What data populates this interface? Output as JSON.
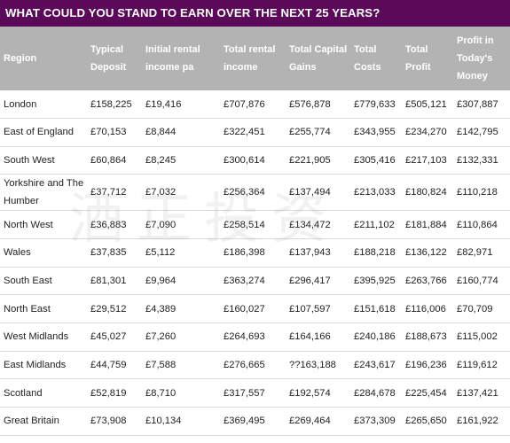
{
  "title": "WHAT COULD YOU STAND TO EARN OVER THE NEXT 25 YEARS?",
  "columns": [
    "Region",
    "Typical Deposit",
    "Initial rental income pa",
    "Total rental income",
    "Total Capital Gains",
    "Total Costs",
    "Total Profit",
    "Profit in Today's Money"
  ],
  "rows": [
    [
      "London",
      "£158,225",
      "£19,416",
      "£707,876",
      "£576,878",
      "£779,633",
      "£505,121",
      "£307,887"
    ],
    [
      "East of England",
      "£70,153",
      "£8,844",
      "£322,451",
      "£255,774",
      "£343,955",
      "£234,270",
      "£142,795"
    ],
    [
      "South West",
      "£60,864",
      "£8,245",
      "£300,614",
      "£221,905",
      "£305,416",
      "£217,103",
      "£132,331"
    ],
    [
      "Yorkshire and The Humber",
      "£37,712",
      "£7,032",
      "£256,364",
      "£137,494",
      "£213,033",
      "£180,824",
      "£110,218"
    ],
    [
      "North West",
      "£36,883",
      "£7,090",
      "£258,514",
      "£134,472",
      "£211,102",
      "£181,884",
      "£110,864"
    ],
    [
      "Wales",
      "£37,835",
      "£5,112",
      "£186,398",
      "£137,943",
      "£188,218",
      "£136,122",
      "£82,971"
    ],
    [
      "South East",
      "£81,301",
      "£9,964",
      "£363,274",
      "£296,417",
      "£395,925",
      "£263,766",
      "£160,774"
    ],
    [
      "North East",
      "£29,512",
      "£4,389",
      "£160,027",
      "£107,597",
      "£151,618",
      "£116,006",
      "£70,709"
    ],
    [
      "West Midlands",
      "£45,027",
      "£7,260",
      "£264,693",
      "£164,166",
      "£240,186",
      "£188,673",
      "£115,002"
    ],
    [
      "East Midlands",
      "£44,759",
      "£7,588",
      "£276,665",
      "??163,188",
      "£243,617",
      "£196,236",
      "£119,612"
    ],
    [
      "Scotland",
      "£52,819",
      "£8,710",
      "£317,557",
      "£192,574",
      "£284,678",
      "£225,454",
      "£137,421"
    ],
    [
      "Great Britain",
      "£73,908",
      "£10,134",
      "£369,495",
      "£269,464",
      "£373,309",
      "£265,650",
      "£161,922"
    ]
  ],
  "watermark": "酒正投资",
  "colors": {
    "title_bg": "#5b0a5a",
    "header_bg": "#b3b3b3",
    "row_border": "#d8d8d8"
  }
}
